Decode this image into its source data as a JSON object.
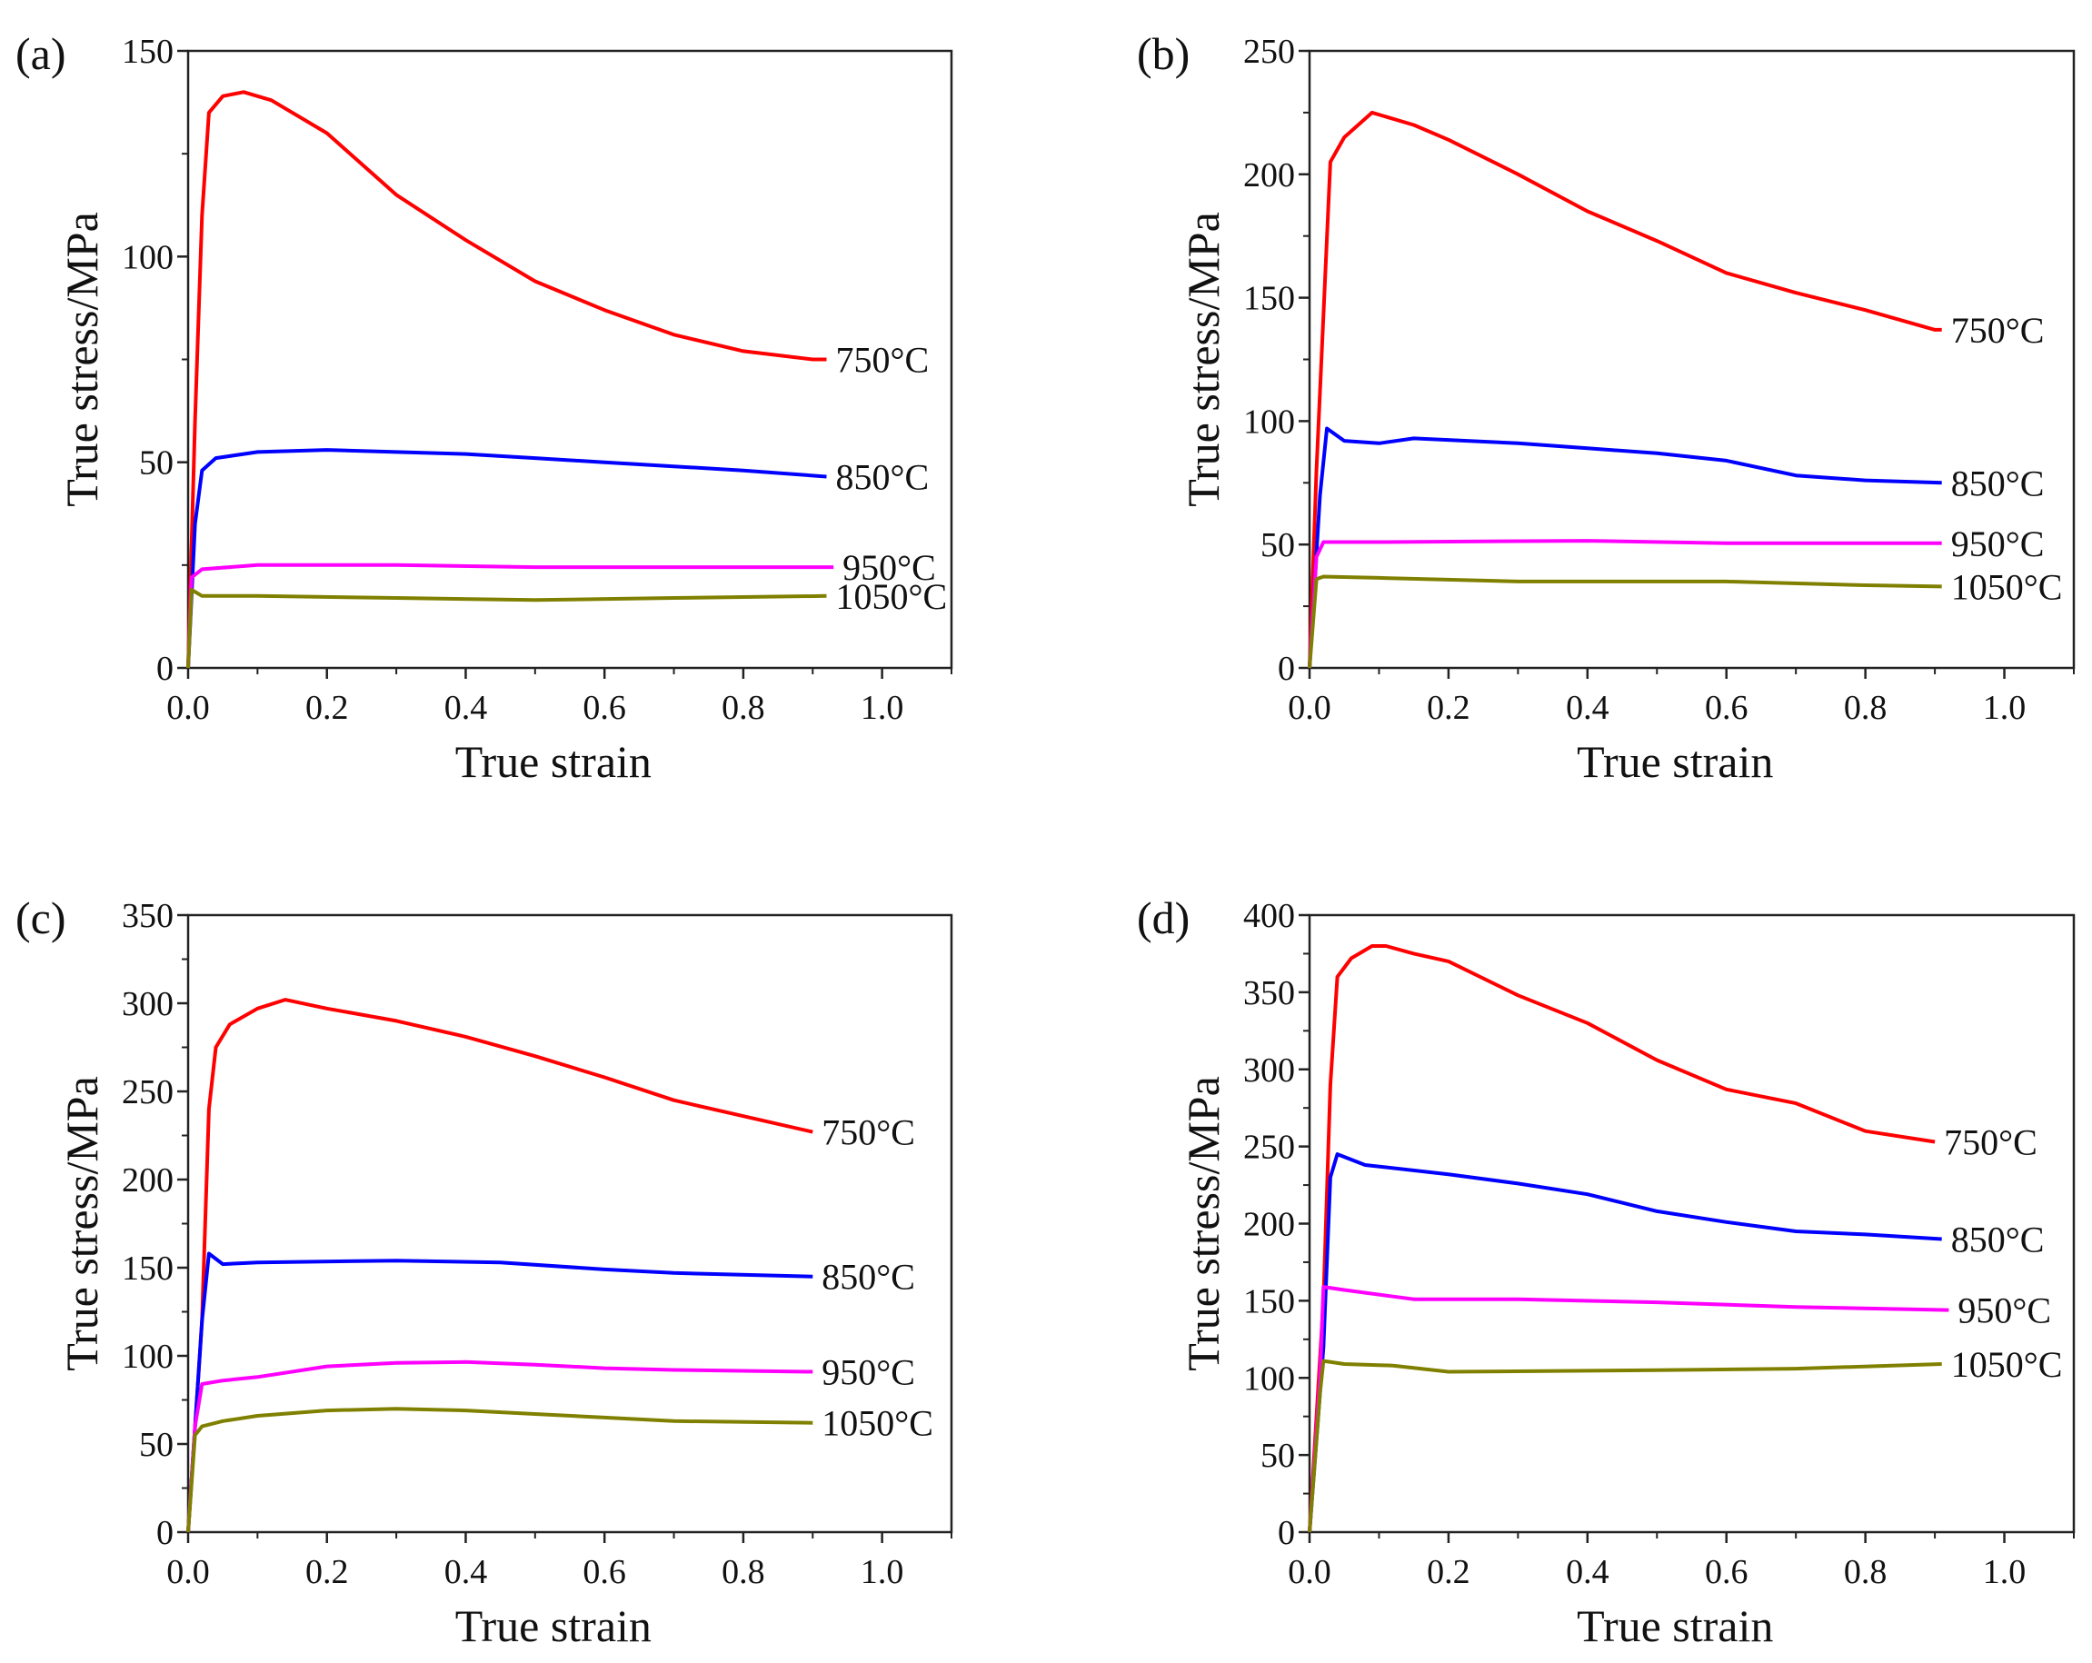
{
  "chart_data": [
    {
      "type": "line",
      "panel_label": "(a)",
      "xlabel": "True strain",
      "ylabel": "True stress/MPa",
      "xlim": [
        0,
        1.1
      ],
      "ylim": [
        0,
        150
      ],
      "xticks": [
        "0.0",
        "0.2",
        "0.4",
        "0.6",
        "0.8",
        "1.0"
      ],
      "yticks": [
        "0",
        "50",
        "100",
        "150"
      ],
      "series": [
        {
          "name": "750°C",
          "color": "#ff0000",
          "x": [
            0,
            0.01,
            0.02,
            0.03,
            0.05,
            0.08,
            0.12,
            0.2,
            0.3,
            0.4,
            0.5,
            0.6,
            0.7,
            0.8,
            0.9,
            0.92
          ],
          "y": [
            0,
            60,
            110,
            135,
            139,
            140,
            138,
            130,
            115,
            104,
            94,
            87,
            81,
            77,
            75,
            75
          ]
        },
        {
          "name": "850°C",
          "color": "#0000ff",
          "x": [
            0,
            0.01,
            0.02,
            0.04,
            0.1,
            0.2,
            0.3,
            0.4,
            0.5,
            0.6,
            0.7,
            0.8,
            0.92
          ],
          "y": [
            0,
            35,
            48,
            51,
            52.5,
            53,
            52.5,
            52,
            51,
            50,
            49,
            48,
            46.5
          ]
        },
        {
          "name": "950°C",
          "color": "#ff00ff",
          "x": [
            0,
            0.005,
            0.02,
            0.1,
            0.3,
            0.5,
            0.7,
            0.93
          ],
          "y": [
            0,
            22,
            24,
            25,
            25,
            24.5,
            24.5,
            24.5
          ]
        },
        {
          "name": "1050°C",
          "color": "#808000",
          "x": [
            0,
            0.005,
            0.02,
            0.1,
            0.3,
            0.5,
            0.7,
            0.92
          ],
          "y": [
            0,
            19,
            17.5,
            17.5,
            17,
            16.5,
            17,
            17.5
          ]
        }
      ]
    },
    {
      "type": "line",
      "panel_label": "(b)",
      "xlabel": "True strain",
      "ylabel": "True stress/MPa",
      "xlim": [
        0,
        1.1
      ],
      "ylim": [
        0,
        250
      ],
      "xticks": [
        "0.0",
        "0.2",
        "0.4",
        "0.6",
        "0.8",
        "1.0"
      ],
      "yticks": [
        "0",
        "50",
        "100",
        "150",
        "200",
        "250"
      ],
      "series": [
        {
          "name": "750°C",
          "color": "#ff0000",
          "x": [
            0,
            0.01,
            0.03,
            0.05,
            0.09,
            0.15,
            0.2,
            0.3,
            0.4,
            0.5,
            0.6,
            0.7,
            0.8,
            0.9,
            0.91
          ],
          "y": [
            0,
            80,
            205,
            215,
            225,
            220,
            214,
            200,
            185,
            173,
            160,
            152,
            145,
            137,
            137
          ]
        },
        {
          "name": "850°C",
          "color": "#0000ff",
          "x": [
            0,
            0.015,
            0.025,
            0.05,
            0.1,
            0.15,
            0.3,
            0.4,
            0.5,
            0.6,
            0.7,
            0.8,
            0.91
          ],
          "y": [
            0,
            70,
            97,
            92,
            91,
            93,
            91,
            89,
            87,
            84,
            78,
            76,
            75
          ]
        },
        {
          "name": "950°C",
          "color": "#ff00ff",
          "x": [
            0,
            0.01,
            0.02,
            0.1,
            0.4,
            0.6,
            0.91
          ],
          "y": [
            0,
            45,
            51,
            51,
            51.5,
            50.5,
            50.5
          ]
        },
        {
          "name": "1050°C",
          "color": "#808000",
          "x": [
            0,
            0.01,
            0.02,
            0.1,
            0.3,
            0.4,
            0.6,
            0.8,
            0.91
          ],
          "y": [
            0,
            36,
            37,
            36.5,
            35,
            35,
            35,
            33.5,
            33
          ]
        }
      ]
    },
    {
      "type": "line",
      "panel_label": "(c)",
      "xlabel": "True strain",
      "ylabel": "True stress/MPa",
      "xlim": [
        0,
        1.1
      ],
      "ylim": [
        0,
        350
      ],
      "xticks": [
        "0.0",
        "0.2",
        "0.4",
        "0.6",
        "0.8",
        "1.0"
      ],
      "yticks": [
        "0",
        "50",
        "100",
        "150",
        "200",
        "250",
        "300",
        "350"
      ],
      "series": [
        {
          "name": "750°C",
          "color": "#ff0000",
          "x": [
            0,
            0.02,
            0.03,
            0.04,
            0.06,
            0.1,
            0.14,
            0.2,
            0.3,
            0.4,
            0.5,
            0.6,
            0.7,
            0.8,
            0.9
          ],
          "y": [
            0,
            120,
            240,
            275,
            288,
            297,
            302,
            297,
            290,
            281,
            270,
            258,
            245,
            236,
            227
          ]
        },
        {
          "name": "850°C",
          "color": "#0000ff",
          "x": [
            0,
            0.02,
            0.03,
            0.05,
            0.1,
            0.3,
            0.45,
            0.6,
            0.7,
            0.9
          ],
          "y": [
            0,
            120,
            158,
            152,
            153,
            154,
            153,
            149,
            147,
            145
          ]
        },
        {
          "name": "950°C",
          "color": "#ff00ff",
          "x": [
            0,
            0.01,
            0.02,
            0.05,
            0.1,
            0.2,
            0.3,
            0.4,
            0.5,
            0.6,
            0.7,
            0.9
          ],
          "y": [
            0,
            60,
            84,
            86,
            88,
            94,
            96,
            96.5,
            95,
            93,
            92,
            91
          ]
        },
        {
          "name": "1050°C",
          "color": "#808000",
          "x": [
            0,
            0.01,
            0.02,
            0.05,
            0.1,
            0.2,
            0.3,
            0.4,
            0.5,
            0.6,
            0.7,
            0.9
          ],
          "y": [
            0,
            55,
            60,
            63,
            66,
            69,
            70,
            69,
            67,
            65,
            63,
            62
          ]
        }
      ]
    },
    {
      "type": "line",
      "panel_label": "(d)",
      "xlabel": "True strain",
      "ylabel": "True stress/MPa",
      "xlim": [
        0,
        1.1
      ],
      "ylim": [
        0,
        400
      ],
      "xticks": [
        "0.0",
        "0.2",
        "0.4",
        "0.6",
        "0.8",
        "1.0"
      ],
      "yticks": [
        "0",
        "50",
        "100",
        "150",
        "200",
        "250",
        "300",
        "350",
        "400"
      ],
      "series": [
        {
          "name": "750°C",
          "color": "#ff0000",
          "x": [
            0,
            0.02,
            0.03,
            0.04,
            0.06,
            0.09,
            0.11,
            0.15,
            0.2,
            0.3,
            0.4,
            0.5,
            0.6,
            0.7,
            0.8,
            0.9
          ],
          "y": [
            0,
            150,
            290,
            360,
            372,
            380,
            380,
            375,
            370,
            348,
            330,
            306,
            287,
            278,
            260,
            253
          ]
        },
        {
          "name": "850°C",
          "color": "#0000ff",
          "x": [
            0,
            0.02,
            0.03,
            0.04,
            0.08,
            0.2,
            0.3,
            0.4,
            0.5,
            0.6,
            0.7,
            0.8,
            0.91
          ],
          "y": [
            0,
            120,
            230,
            245,
            238,
            232,
            226,
            219,
            208,
            201,
            195,
            193,
            190
          ]
        },
        {
          "name": "950°C",
          "color": "#ff00ff",
          "x": [
            0,
            0.015,
            0.02,
            0.05,
            0.15,
            0.3,
            0.5,
            0.7,
            0.92
          ],
          "y": [
            0,
            100,
            159,
            157,
            151,
            151,
            149,
            146,
            144
          ]
        },
        {
          "name": "1050°C",
          "color": "#808000",
          "x": [
            0,
            0.015,
            0.02,
            0.05,
            0.12,
            0.2,
            0.5,
            0.7,
            0.91
          ],
          "y": [
            0,
            90,
            111,
            109,
            108,
            104,
            105,
            106,
            109
          ]
        }
      ]
    }
  ]
}
